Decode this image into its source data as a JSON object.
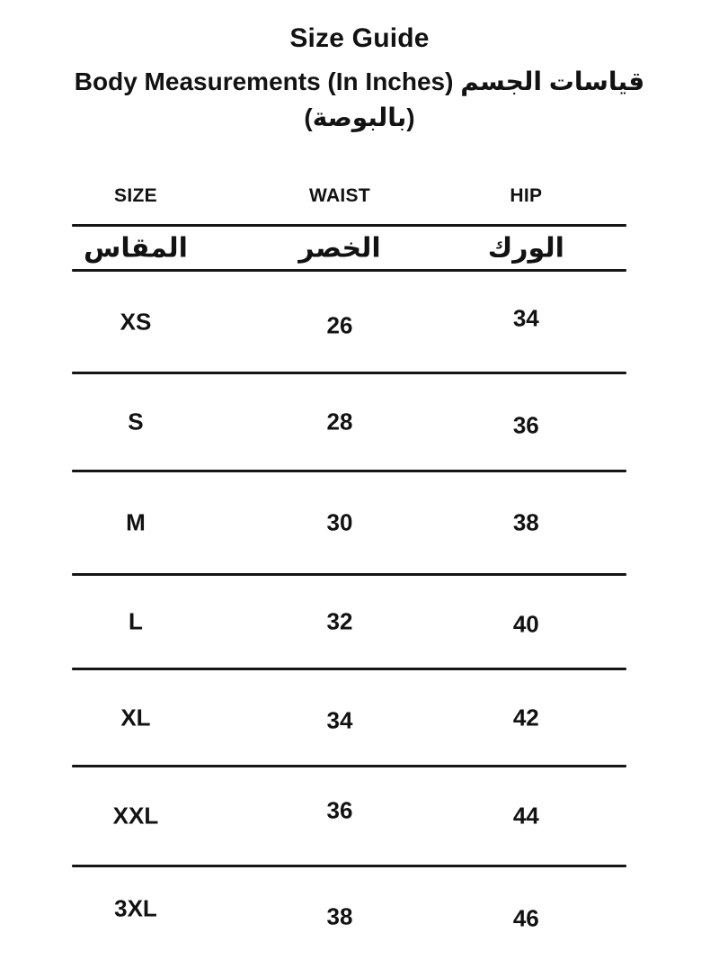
{
  "page": {
    "title": "Size Guide",
    "subtitle_line1": "Body Measurements (In Inches) قياسات الجسم",
    "subtitle_line2": "(بالبوصة)"
  },
  "table": {
    "headers_en": {
      "size": "SIZE",
      "waist": "WAIST",
      "hip": "HIP"
    },
    "headers_ar": {
      "size": "المقاس",
      "waist": "الخصر",
      "hip": "الورك"
    },
    "rows": [
      {
        "size": "XS",
        "waist": "26",
        "hip": "34"
      },
      {
        "size": "S",
        "waist": "28",
        "hip": "36"
      },
      {
        "size": "M",
        "waist": "30",
        "hip": "38"
      },
      {
        "size": "L",
        "waist": "32",
        "hip": "40"
      },
      {
        "size": "XL",
        "waist": "34",
        "hip": "42"
      },
      {
        "size": "XXL",
        "waist": "36",
        "hip": "44"
      },
      {
        "size": "3XL",
        "waist": "38",
        "hip": "46"
      }
    ]
  },
  "colors": {
    "text": "#121212",
    "rule": "#161616",
    "background": "#ffffff"
  }
}
